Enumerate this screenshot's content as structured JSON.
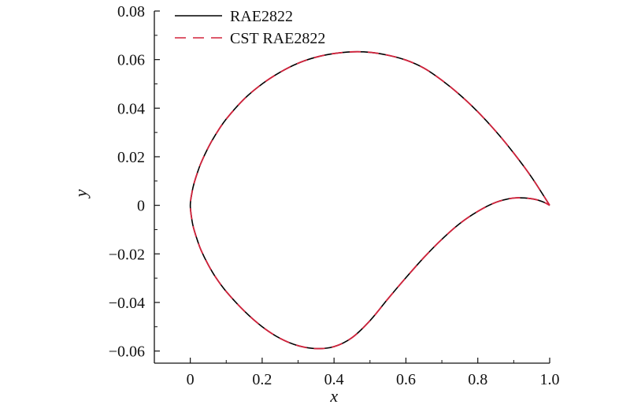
{
  "chart_data": {
    "type": "line",
    "xlabel": "x",
    "ylabel": "y",
    "xlim": [
      -0.1,
      1.0
    ],
    "ylim": [
      -0.065,
      0.08
    ],
    "xticks": [
      0,
      0.2,
      0.4,
      0.6,
      0.8,
      1.0
    ],
    "xtick_labels": [
      "0",
      "0.2",
      "0.4",
      "0.6",
      "0.8",
      "1.0"
    ],
    "yticks": [
      -0.06,
      -0.04,
      -0.02,
      0,
      0.02,
      0.04,
      0.06,
      0.08
    ],
    "ytick_labels": [
      "−0.06",
      "−0.04",
      "−0.02",
      "0",
      "0.02",
      "0.04",
      "0.06",
      "0.08"
    ],
    "grid": false,
    "legend_position": "top-left",
    "series": [
      {
        "name": "RAE2822",
        "style": "solid",
        "color": "#000000",
        "x": [
          1.0,
          0.95,
          0.9,
          0.85,
          0.8,
          0.75,
          0.7,
          0.65,
          0.6,
          0.55,
          0.5,
          0.45,
          0.4,
          0.35,
          0.3,
          0.25,
          0.2,
          0.15,
          0.1,
          0.07,
          0.05,
          0.03,
          0.02,
          0.01,
          0.005,
          0.0,
          0.005,
          0.01,
          0.02,
          0.03,
          0.05,
          0.07,
          0.1,
          0.15,
          0.2,
          0.25,
          0.3,
          0.35,
          0.4,
          0.45,
          0.5,
          0.55,
          0.6,
          0.65,
          0.7,
          0.75,
          0.8,
          0.85,
          0.9,
          0.95,
          0.98,
          1.0
        ],
        "y": [
          0.0,
          0.0115,
          0.0215,
          0.0305,
          0.0385,
          0.0455,
          0.0515,
          0.0565,
          0.0598,
          0.0618,
          0.063,
          0.0632,
          0.0625,
          0.061,
          0.0585,
          0.0548,
          0.05,
          0.0438,
          0.0355,
          0.029,
          0.0238,
          0.0175,
          0.0135,
          0.0088,
          0.0055,
          0.0,
          -0.0065,
          -0.0098,
          -0.0145,
          -0.0185,
          -0.0245,
          -0.0295,
          -0.0355,
          -0.0435,
          -0.05,
          -0.0548,
          -0.0578,
          -0.059,
          -0.0582,
          -0.0545,
          -0.0475,
          -0.0385,
          -0.0298,
          -0.0215,
          -0.014,
          -0.0075,
          -0.0025,
          0.0012,
          0.003,
          0.0027,
          0.0015,
          0.0
        ]
      },
      {
        "name": "CST RAE2822",
        "style": "dashed",
        "color": "#d2233c",
        "x": [
          1.0,
          0.95,
          0.9,
          0.85,
          0.8,
          0.75,
          0.7,
          0.65,
          0.6,
          0.55,
          0.5,
          0.45,
          0.4,
          0.35,
          0.3,
          0.25,
          0.2,
          0.15,
          0.1,
          0.07,
          0.05,
          0.03,
          0.02,
          0.01,
          0.005,
          0.0,
          0.005,
          0.01,
          0.02,
          0.03,
          0.05,
          0.07,
          0.1,
          0.15,
          0.2,
          0.25,
          0.3,
          0.35,
          0.4,
          0.45,
          0.5,
          0.55,
          0.6,
          0.65,
          0.7,
          0.75,
          0.8,
          0.85,
          0.9,
          0.95,
          0.98,
          1.0
        ],
        "y": [
          0.0,
          0.0115,
          0.0215,
          0.0305,
          0.0385,
          0.0455,
          0.0515,
          0.0565,
          0.0598,
          0.0618,
          0.063,
          0.0632,
          0.0625,
          0.061,
          0.0585,
          0.0548,
          0.05,
          0.0438,
          0.0355,
          0.029,
          0.0238,
          0.0175,
          0.0135,
          0.0088,
          0.0055,
          0.0,
          -0.0065,
          -0.0098,
          -0.0145,
          -0.0185,
          -0.0245,
          -0.0295,
          -0.0355,
          -0.0435,
          -0.05,
          -0.0548,
          -0.0578,
          -0.059,
          -0.0582,
          -0.0545,
          -0.0475,
          -0.0385,
          -0.0298,
          -0.0215,
          -0.014,
          -0.0075,
          -0.0025,
          0.0012,
          0.003,
          0.0027,
          0.0015,
          0.0
        ]
      }
    ]
  }
}
